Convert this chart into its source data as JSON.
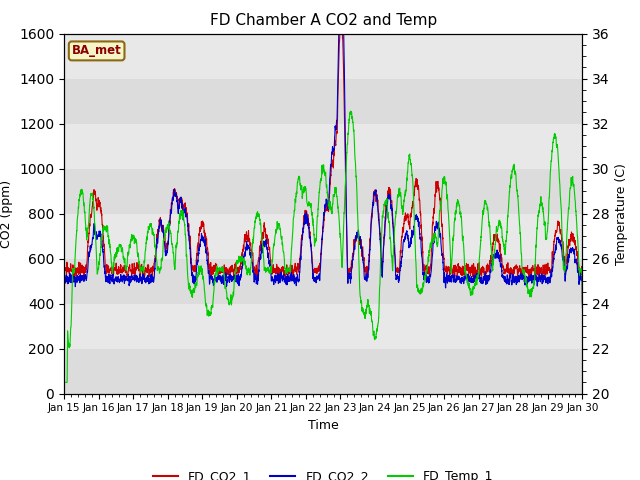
{
  "title": "FD Chamber A CO2 and Temp",
  "xlabel": "Time",
  "ylabel_left": "CO2 (ppm)",
  "ylabel_right": "Temperature (C)",
  "ylim_left": [
    0,
    1600
  ],
  "ylim_right": [
    20,
    36
  ],
  "yticks_left": [
    0,
    200,
    400,
    600,
    800,
    1000,
    1200,
    1400,
    1600
  ],
  "yticks_right": [
    20,
    22,
    24,
    26,
    28,
    30,
    32,
    34,
    36
  ],
  "plot_bg_bands": [
    [
      0,
      200,
      "#dcdcdc"
    ],
    [
      200,
      400,
      "#e8e8e8"
    ],
    [
      400,
      600,
      "#dcdcdc"
    ],
    [
      600,
      800,
      "#e8e8e8"
    ],
    [
      800,
      1000,
      "#dcdcdc"
    ],
    [
      1000,
      1200,
      "#e8e8e8"
    ],
    [
      1200,
      1400,
      "#dcdcdc"
    ],
    [
      1400,
      1600,
      "#e8e8e8"
    ]
  ],
  "legend_label_box": "BA_met",
  "series": {
    "FD_CO2_1": {
      "color": "#cc0000",
      "lw": 0.8
    },
    "FD_CO2_2": {
      "color": "#0000cc",
      "lw": 0.8
    },
    "FD_Temp_1": {
      "color": "#00cc00",
      "lw": 0.8
    }
  },
  "xtick_labels": [
    "Jan 15",
    "Jan 16",
    "Jan 17",
    "Jan 18",
    "Jan 19",
    "Jan 20",
    "Jan 21",
    "Jan 22",
    "Jan 23",
    "Jan 24",
    "Jan 25",
    "Jan 26",
    "Jan 27",
    "Jan 28",
    "Jan 29",
    "Jan 30"
  ],
  "n_days": 15
}
